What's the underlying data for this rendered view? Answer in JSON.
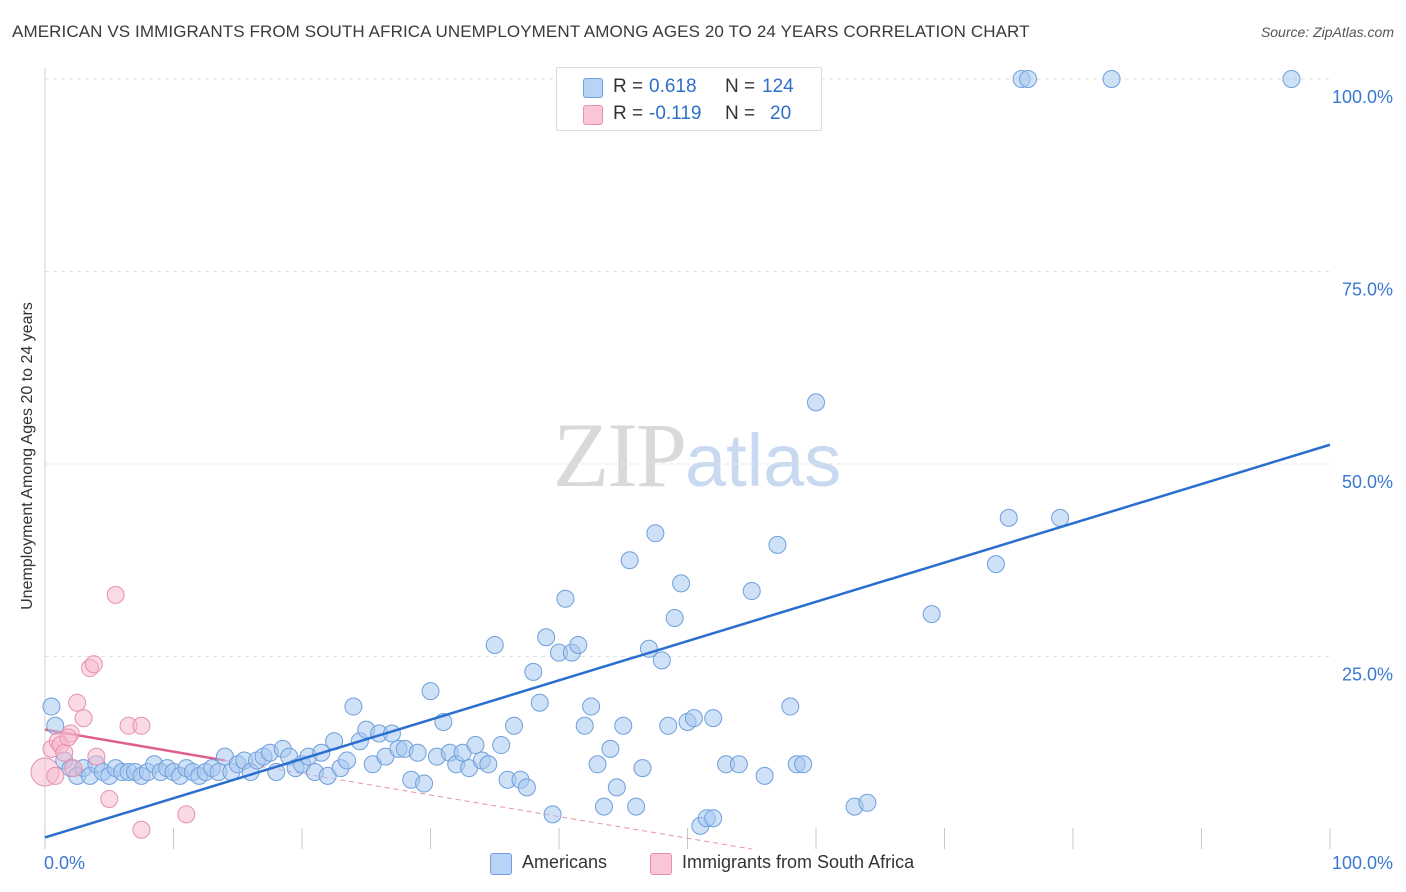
{
  "title": "AMERICAN VS IMMIGRANTS FROM SOUTH AFRICA UNEMPLOYMENT AMONG AGES 20 TO 24 YEARS CORRELATION CHART",
  "source": "Source: ZipAtlas.com",
  "watermark": {
    "zip": "ZIP",
    "atlas": "atlas"
  },
  "legend": {
    "rows": [
      {
        "r_label": "R =",
        "r_value": "0.618",
        "n_label": "N =",
        "n_value": "124"
      },
      {
        "r_label": "R =",
        "r_value": "-0.119",
        "n_label": "N =",
        "n_value": "20"
      }
    ]
  },
  "colors": {
    "blue_fill": "#a8c8f0",
    "blue_stroke": "#6f9fdc",
    "blue_line": "#2a6fcf",
    "pink_fill": "#f6b8cc",
    "pink_stroke": "#e890ac",
    "pink_line": "#e0608a",
    "tick_text": "#3a78cf"
  },
  "chart_data": {
    "type": "scatter",
    "title": "AMERICAN VS IMMIGRANTS FROM SOUTH AFRICA UNEMPLOYMENT AMONG AGES 20 TO 24 YEARS CORRELATION CHART",
    "xlabel": "",
    "ylabel": "Unemployment Among Ages 20 to 24 years",
    "xlim": [
      0,
      100
    ],
    "ylim": [
      0,
      100
    ],
    "x_tick_labels": [
      "0.0%",
      "100.0%"
    ],
    "y_ticks": [
      {
        "value": 25,
        "label": "25.0%"
      },
      {
        "value": 50,
        "label": "50.0%"
      },
      {
        "value": 75,
        "label": "75.0%"
      },
      {
        "value": 100,
        "label": "100.0%"
      }
    ],
    "grid": true,
    "series": [
      {
        "name": "Americans",
        "color": "#a8c8f0",
        "trend": {
          "x": [
            0,
            100
          ],
          "y": [
            1.5,
            52.5
          ]
        },
        "points": [
          [
            0.5,
            18.5
          ],
          [
            0.8,
            16
          ],
          [
            1.5,
            11.5
          ],
          [
            2,
            10.5
          ],
          [
            2.5,
            9.5
          ],
          [
            3,
            10.5
          ],
          [
            3.5,
            9.5
          ],
          [
            4,
            11
          ],
          [
            4.5,
            10
          ],
          [
            5,
            9.5
          ],
          [
            5.5,
            10.5
          ],
          [
            6,
            10
          ],
          [
            6.5,
            10
          ],
          [
            7,
            10
          ],
          [
            7.5,
            9.5
          ],
          [
            8,
            10
          ],
          [
            8.5,
            11
          ],
          [
            9,
            10
          ],
          [
            9.5,
            10.5
          ],
          [
            10,
            10
          ],
          [
            10.5,
            9.5
          ],
          [
            11,
            10.5
          ],
          [
            11.5,
            10
          ],
          [
            12,
            9.5
          ],
          [
            12.5,
            10
          ],
          [
            13,
            10.5
          ],
          [
            13.5,
            10
          ],
          [
            14,
            12
          ],
          [
            14.5,
            10
          ],
          [
            15,
            11
          ],
          [
            15.5,
            11.5
          ],
          [
            16,
            10
          ],
          [
            16.5,
            11.5
          ],
          [
            17,
            12
          ],
          [
            17.5,
            12.5
          ],
          [
            18,
            10
          ],
          [
            18.5,
            13
          ],
          [
            19,
            12
          ],
          [
            19.5,
            10.5
          ],
          [
            20,
            11
          ],
          [
            20.5,
            12
          ],
          [
            21,
            10
          ],
          [
            21.5,
            12.5
          ],
          [
            22,
            9.5
          ],
          [
            22.5,
            14
          ],
          [
            23,
            10.5
          ],
          [
            23.5,
            11.5
          ],
          [
            24,
            18.5
          ],
          [
            24.5,
            14
          ],
          [
            25,
            15.5
          ],
          [
            25.5,
            11
          ],
          [
            26,
            15
          ],
          [
            26.5,
            12
          ],
          [
            27,
            15
          ],
          [
            27.5,
            13
          ],
          [
            28,
            13
          ],
          [
            28.5,
            9
          ],
          [
            29,
            12.5
          ],
          [
            29.5,
            8.5
          ],
          [
            30,
            20.5
          ],
          [
            30.5,
            12
          ],
          [
            31,
            16.5
          ],
          [
            31.5,
            12.5
          ],
          [
            32,
            11
          ],
          [
            32.5,
            12.5
          ],
          [
            33,
            10.5
          ],
          [
            33.5,
            13.5
          ],
          [
            34,
            11.5
          ],
          [
            34.5,
            11
          ],
          [
            35,
            26.5
          ],
          [
            35.5,
            13.5
          ],
          [
            36,
            9
          ],
          [
            36.5,
            16
          ],
          [
            37,
            9
          ],
          [
            37.5,
            8
          ],
          [
            38,
            23
          ],
          [
            38.5,
            19
          ],
          [
            39,
            27.5
          ],
          [
            39.5,
            4.5
          ],
          [
            40,
            25.5
          ],
          [
            40.5,
            32.5
          ],
          [
            41,
            25.5
          ],
          [
            41.5,
            26.5
          ],
          [
            42,
            16
          ],
          [
            42.5,
            18.5
          ],
          [
            43,
            11
          ],
          [
            43.5,
            5.5
          ],
          [
            44,
            13
          ],
          [
            44.5,
            8
          ],
          [
            45,
            16
          ],
          [
            45.5,
            37.5
          ],
          [
            46,
            5.5
          ],
          [
            46.5,
            10.5
          ],
          [
            47,
            26
          ],
          [
            47.5,
            41
          ],
          [
            48,
            24.5
          ],
          [
            48.5,
            16
          ],
          [
            49,
            30
          ],
          [
            49.5,
            34.5
          ],
          [
            50,
            16.5
          ],
          [
            50.5,
            17
          ],
          [
            51,
            3
          ],
          [
            51.5,
            4
          ],
          [
            52,
            17
          ],
          [
            53,
            11
          ],
          [
            54,
            11
          ],
          [
            55,
            33.5
          ],
          [
            56,
            9.5
          ],
          [
            57,
            39.5
          ],
          [
            58,
            18.5
          ],
          [
            58.5,
            11
          ],
          [
            59,
            11
          ],
          [
            60,
            58
          ],
          [
            63,
            5.5
          ],
          [
            64,
            6
          ],
          [
            69,
            30.5
          ],
          [
            74,
            37
          ],
          [
            75,
            43
          ],
          [
            79,
            43
          ],
          [
            76,
            100
          ],
          [
            76.5,
            100
          ],
          [
            83,
            100
          ],
          [
            97,
            100
          ],
          [
            52,
            4
          ]
        ]
      },
      {
        "name": "Immigrants from South Africa",
        "color": "#f6b8cc",
        "trend": {
          "x": [
            0,
            14
          ],
          "y": [
            15.5,
            11.5
          ]
        },
        "trend_extension": {
          "x": [
            14,
            55
          ],
          "y": [
            11.5,
            0
          ]
        },
        "points": [
          [
            0,
            10
          ],
          [
            0.5,
            13
          ],
          [
            1,
            14
          ],
          [
            1.2,
            13.5
          ],
          [
            1.5,
            12.5
          ],
          [
            2,
            15
          ],
          [
            2.5,
            19
          ],
          [
            3,
            17
          ],
          [
            3.5,
            23.5
          ],
          [
            3.8,
            24
          ],
          [
            4,
            12
          ],
          [
            5,
            6.5
          ],
          [
            5.5,
            33
          ],
          [
            6.5,
            16
          ],
          [
            7.5,
            16
          ],
          [
            7.5,
            2.5
          ],
          [
            11,
            4.5
          ],
          [
            1.8,
            14.5
          ],
          [
            0.8,
            9.5
          ],
          [
            2.2,
            10.5
          ]
        ]
      }
    ]
  },
  "bottom_legend": {
    "americans": "Americans",
    "immigrants": "Immigrants from South Africa"
  }
}
